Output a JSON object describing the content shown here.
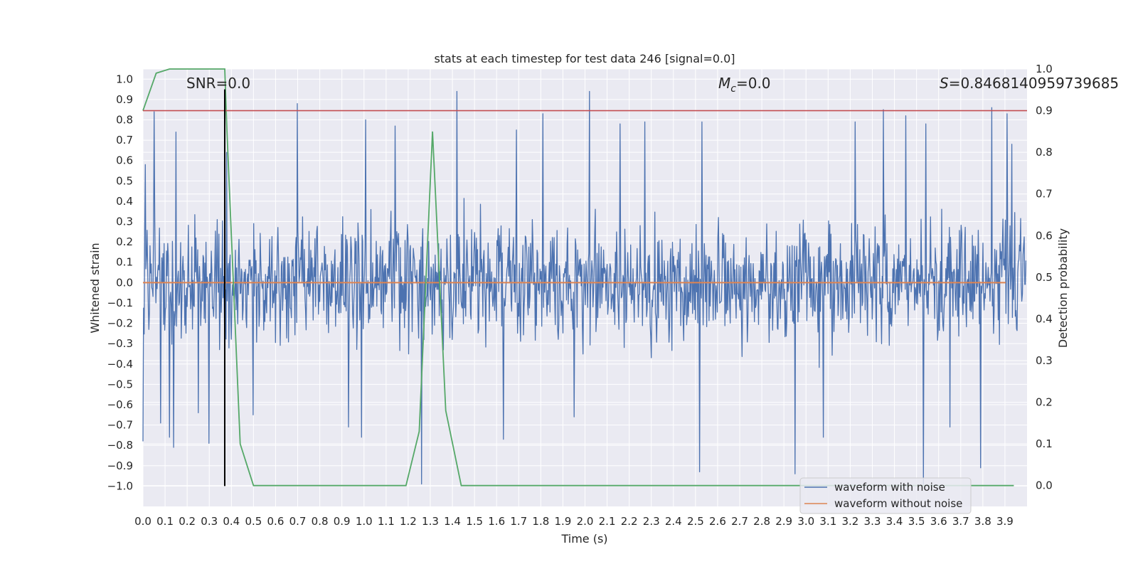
{
  "chart_data": {
    "type": "line",
    "title": "stats at each timestep for test data 246 [signal=0.0]",
    "xlabel": "Time (s)",
    "ylabel_left": "Whitened strain",
    "ylabel_right": "Detection probability",
    "xlim": [
      0.0,
      4.0
    ],
    "ylim_left": [
      -1.1,
      1.05
    ],
    "ylim_right": [
      -0.05,
      1.0
    ],
    "xticks": [
      "0.0",
      "0.1",
      "0.2",
      "0.3",
      "0.4",
      "0.5",
      "0.6",
      "0.7",
      "0.8",
      "0.9",
      "1.0",
      "1.1",
      "1.2",
      "1.3",
      "1.4",
      "1.5",
      "1.6",
      "1.7",
      "1.8",
      "1.9",
      "2.0",
      "2.1",
      "2.2",
      "2.3",
      "2.4",
      "2.5",
      "2.6",
      "2.7",
      "2.8",
      "2.9",
      "3.0",
      "3.1",
      "3.2",
      "3.3",
      "3.4",
      "3.5",
      "3.6",
      "3.7",
      "3.8",
      "3.9"
    ],
    "yticks_left": [
      "1.0",
      "0.9",
      "0.8",
      "0.7",
      "0.6",
      "0.5",
      "0.4",
      "0.3",
      "0.2",
      "0.1",
      "0.0",
      "−0.1",
      "−0.2",
      "−0.3",
      "−0.4",
      "−0.5",
      "−0.6",
      "−0.7",
      "−0.8",
      "−0.9",
      "−1.0"
    ],
    "yticks_right": [
      "1.0",
      "0.9",
      "0.8",
      "0.7",
      "0.6",
      "0.5",
      "0.4",
      "0.3",
      "0.2",
      "0.1",
      "0.0"
    ],
    "annotations": {
      "snr": "SNR=0.0",
      "mc_symbol": "M",
      "mc_sub": "c",
      "mc_value": "=0.0",
      "s_symbol": "S",
      "s_value": "=0.846814095973968​5"
    },
    "colors": {
      "noisy": "#4c72b0",
      "clean": "#dd8452",
      "probability": "#55a868",
      "threshold": "#c44e52",
      "marker": "#000000",
      "axes_bg": "#eaeaf2",
      "grid": "#ffffff"
    },
    "series": [
      {
        "name": "waveform with noise",
        "axis": "left",
        "note": "white-noise strain, envelope approx ±0.35 with spikes",
        "spikes": [
          [
            0.0,
            -0.78
          ],
          [
            0.01,
            0.58
          ],
          [
            0.05,
            0.84
          ],
          [
            0.08,
            -0.69
          ],
          [
            0.12,
            -0.76
          ],
          [
            0.14,
            -0.81
          ],
          [
            0.15,
            0.74
          ],
          [
            0.25,
            -0.64
          ],
          [
            0.3,
            -0.79
          ],
          [
            0.38,
            0.64
          ],
          [
            0.5,
            -0.65
          ],
          [
            0.7,
            0.88
          ],
          [
            0.93,
            -0.71
          ],
          [
            0.99,
            -0.76
          ],
          [
            1.01,
            0.8
          ],
          [
            1.14,
            0.77
          ],
          [
            1.26,
            -0.99
          ],
          [
            1.42,
            0.94
          ],
          [
            1.63,
            -0.77
          ],
          [
            1.69,
            0.75
          ],
          [
            1.81,
            0.83
          ],
          [
            1.95,
            -0.66
          ],
          [
            2.02,
            0.94
          ],
          [
            2.16,
            0.78
          ],
          [
            2.27,
            0.79
          ],
          [
            2.52,
            -0.93
          ],
          [
            2.53,
            0.79
          ],
          [
            2.95,
            -0.94
          ],
          [
            3.08,
            -0.76
          ],
          [
            3.22,
            0.79
          ],
          [
            3.35,
            0.85
          ],
          [
            3.45,
            0.82
          ],
          [
            3.53,
            -0.99
          ],
          [
            3.54,
            0.78
          ],
          [
            3.65,
            -0.71
          ],
          [
            3.79,
            -0.91
          ],
          [
            3.84,
            0.86
          ],
          [
            3.91,
            0.83
          ],
          [
            3.93,
            0.68
          ]
        ]
      },
      {
        "name": "waveform without noise",
        "axis": "left",
        "x": [
          0.0,
          4.0
        ],
        "y": [
          0.0,
          0.0
        ]
      },
      {
        "name": "detection probability",
        "axis": "right",
        "x": [
          0.0,
          0.06,
          0.12,
          0.19,
          0.25,
          0.31,
          0.37,
          0.38,
          0.44,
          0.5,
          0.56,
          0.62,
          0.69,
          0.75,
          0.81,
          0.87,
          0.94,
          1.0,
          1.06,
          1.12,
          1.19,
          1.25,
          1.31,
          1.37,
          1.44,
          1.5,
          3.94
        ],
        "y": [
          0.9,
          0.99,
          1.0,
          1.0,
          1.0,
          1.0,
          1.0,
          0.85,
          0.1,
          0.0,
          0.0,
          0.0,
          0.0,
          0.0,
          0.0,
          0.0,
          0.0,
          0.0,
          0.0,
          0.0,
          0.0,
          0.13,
          0.85,
          0.18,
          0.0,
          0.0,
          0.0
        ]
      },
      {
        "name": "detection threshold",
        "axis": "right",
        "x": [
          0.0,
          4.0
        ],
        "y": [
          0.9,
          0.9
        ]
      }
    ],
    "vline": {
      "x": 0.37,
      "ymin": -1.0,
      "ymax": 0.95
    },
    "legend": {
      "position": "lower-right",
      "entries": [
        "waveform with noise",
        "waveform without noise"
      ]
    },
    "grid": true
  }
}
